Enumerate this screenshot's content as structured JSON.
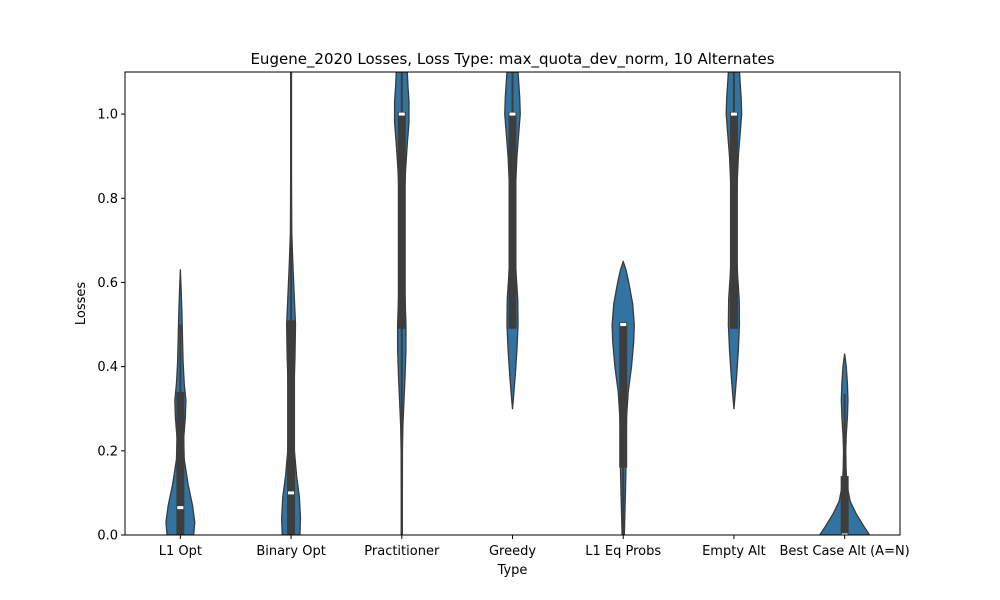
{
  "chart_data": {
    "type": "violin",
    "title": "Eugene_2020 Losses, Loss Type: max_quota_dev_norm, 10 Alternates",
    "xlabel": "Type",
    "ylabel": "Losses",
    "ylim": [
      0,
      1.1
    ],
    "yticks": [
      "0.0",
      "0.2",
      "0.4",
      "0.6",
      "0.8",
      "1.0"
    ],
    "grid": false,
    "color": "#3274a1",
    "edge_color": "#3a3a3a",
    "box_color": "#3d3d3d",
    "categories": [
      "L1 Opt",
      "Binary Opt",
      "Practitioner",
      "Greedy",
      "L1 Eq Probs",
      "Empty Alt",
      "Best Case Alt (A=N)"
    ],
    "violins": [
      {
        "category": "L1 Opt",
        "y_range": [
          0.0,
          0.63
        ],
        "half_width_profile": [
          [
            0.0,
            0.24
          ],
          [
            0.03,
            0.26
          ],
          [
            0.07,
            0.22
          ],
          [
            0.12,
            0.14
          ],
          [
            0.18,
            0.07
          ],
          [
            0.23,
            0.06
          ],
          [
            0.28,
            0.09
          ],
          [
            0.32,
            0.1
          ],
          [
            0.36,
            0.07
          ],
          [
            0.41,
            0.05
          ],
          [
            0.46,
            0.04
          ],
          [
            0.52,
            0.03
          ],
          [
            0.58,
            0.015
          ],
          [
            0.63,
            0.0
          ]
        ],
        "box": {
          "q1": 0.0,
          "median": 0.065,
          "q3": 0.34,
          "whisker_low": 0.0,
          "whisker_high": 0.5
        }
      },
      {
        "category": "Binary Opt",
        "y_range": [
          0.0,
          1.1
        ],
        "half_width_profile": [
          [
            0.0,
            0.16
          ],
          [
            0.04,
            0.17
          ],
          [
            0.09,
            0.15
          ],
          [
            0.14,
            0.1
          ],
          [
            0.2,
            0.06
          ],
          [
            0.27,
            0.04
          ],
          [
            0.34,
            0.05
          ],
          [
            0.42,
            0.07
          ],
          [
            0.5,
            0.08
          ],
          [
            0.56,
            0.06
          ],
          [
            0.62,
            0.04
          ],
          [
            0.67,
            0.025
          ],
          [
            0.72,
            0.012
          ],
          [
            0.85,
            0.007
          ],
          [
            1.1,
            0.007
          ]
        ],
        "box": {
          "q1": 0.0,
          "median": 0.1,
          "q3": 0.51,
          "whisker_low": 0.0,
          "whisker_high": 1.1
        }
      },
      {
        "category": "Practitioner",
        "y_range": [
          0.0,
          1.1
        ],
        "half_width_profile": [
          [
            0.0,
            0.01
          ],
          [
            0.1,
            0.01
          ],
          [
            0.2,
            0.012
          ],
          [
            0.26,
            0.02
          ],
          [
            0.32,
            0.04
          ],
          [
            0.38,
            0.06
          ],
          [
            0.44,
            0.075
          ],
          [
            0.5,
            0.075
          ],
          [
            0.56,
            0.06
          ],
          [
            0.62,
            0.04
          ],
          [
            0.68,
            0.03
          ],
          [
            0.74,
            0.035
          ],
          [
            0.8,
            0.045
          ],
          [
            0.87,
            0.07
          ],
          [
            0.93,
            0.1
          ],
          [
            0.98,
            0.13
          ],
          [
            1.03,
            0.13
          ],
          [
            1.07,
            0.11
          ],
          [
            1.1,
            0.1
          ]
        ],
        "box": {
          "q1": 0.49,
          "median": 1.0,
          "q3": 1.005,
          "whisker_low": 0.0,
          "whisker_high": 1.1
        }
      },
      {
        "category": "Greedy",
        "y_range": [
          0.3,
          1.1
        ],
        "half_width_profile": [
          [
            0.3,
            0.0
          ],
          [
            0.33,
            0.02
          ],
          [
            0.38,
            0.05
          ],
          [
            0.44,
            0.08
          ],
          [
            0.5,
            0.1
          ],
          [
            0.56,
            0.095
          ],
          [
            0.61,
            0.07
          ],
          [
            0.66,
            0.05
          ],
          [
            0.72,
            0.04
          ],
          [
            0.78,
            0.045
          ],
          [
            0.84,
            0.06
          ],
          [
            0.9,
            0.08
          ],
          [
            0.95,
            0.11
          ],
          [
            1.0,
            0.14
          ],
          [
            1.04,
            0.13
          ],
          [
            1.08,
            0.11
          ],
          [
            1.1,
            0.1
          ]
        ],
        "box": {
          "q1": 0.49,
          "median": 1.0,
          "q3": 1.005,
          "whisker_low": 0.49,
          "whisker_high": 1.1
        }
      },
      {
        "category": "L1 Eq Probs",
        "y_range": [
          0.0,
          0.65
        ],
        "half_width_profile": [
          [
            0.0,
            0.02
          ],
          [
            0.05,
            0.03
          ],
          [
            0.1,
            0.04
          ],
          [
            0.16,
            0.05
          ],
          [
            0.22,
            0.05
          ],
          [
            0.28,
            0.06
          ],
          [
            0.34,
            0.09
          ],
          [
            0.4,
            0.15
          ],
          [
            0.46,
            0.19
          ],
          [
            0.5,
            0.2
          ],
          [
            0.55,
            0.17
          ],
          [
            0.6,
            0.1
          ],
          [
            0.63,
            0.05
          ],
          [
            0.65,
            0.0
          ]
        ],
        "box": {
          "q1": 0.16,
          "median": 0.5,
          "q3": 0.505,
          "whisker_low": 0.0,
          "whisker_high": 0.505
        }
      },
      {
        "category": "Empty Alt",
        "y_range": [
          0.3,
          1.1
        ],
        "half_width_profile": [
          [
            0.3,
            0.0
          ],
          [
            0.33,
            0.02
          ],
          [
            0.38,
            0.05
          ],
          [
            0.44,
            0.08
          ],
          [
            0.5,
            0.1
          ],
          [
            0.56,
            0.095
          ],
          [
            0.61,
            0.07
          ],
          [
            0.66,
            0.05
          ],
          [
            0.72,
            0.04
          ],
          [
            0.78,
            0.045
          ],
          [
            0.84,
            0.06
          ],
          [
            0.9,
            0.08
          ],
          [
            0.95,
            0.11
          ],
          [
            1.0,
            0.14
          ],
          [
            1.04,
            0.13
          ],
          [
            1.08,
            0.11
          ],
          [
            1.1,
            0.1
          ]
        ],
        "box": {
          "q1": 0.49,
          "median": 1.0,
          "q3": 1.005,
          "whisker_low": 0.49,
          "whisker_high": 1.1
        }
      },
      {
        "category": "Best Case Alt (A=N)",
        "y_range": [
          0.0,
          0.43
        ],
        "half_width_profile": [
          [
            0.0,
            0.45
          ],
          [
            0.02,
            0.35
          ],
          [
            0.05,
            0.21
          ],
          [
            0.08,
            0.1
          ],
          [
            0.12,
            0.04
          ],
          [
            0.16,
            0.025
          ],
          [
            0.2,
            0.02
          ],
          [
            0.24,
            0.03
          ],
          [
            0.28,
            0.05
          ],
          [
            0.32,
            0.06
          ],
          [
            0.36,
            0.05
          ],
          [
            0.4,
            0.03
          ],
          [
            0.43,
            0.0
          ]
        ],
        "box": {
          "q1": 0.0,
          "median": 0.0,
          "q3": 0.14,
          "whisker_low": 0.0,
          "whisker_high": 0.335
        }
      }
    ]
  }
}
